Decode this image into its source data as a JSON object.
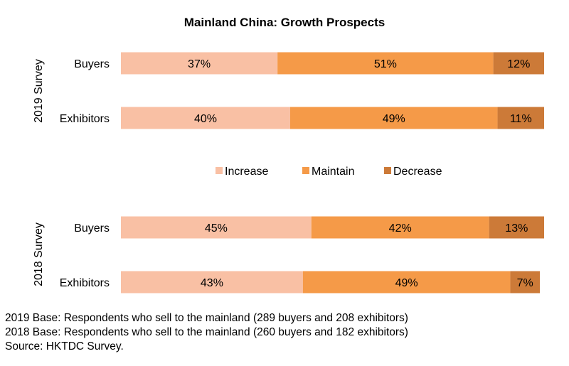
{
  "chart_data": {
    "type": "bar",
    "subtype": "stacked-horizontal-100",
    "title": "Mainland China: Growth Prospects",
    "groups": [
      {
        "label": "2019 Survey",
        "rows": [
          {
            "category": "Buyers",
            "values": [
              37,
              51,
              12
            ]
          },
          {
            "category": "Exhibitors",
            "values": [
              40,
              49,
              11
            ]
          }
        ]
      },
      {
        "label": "2018 Survey",
        "rows": [
          {
            "category": "Buyers",
            "values": [
              45,
              42,
              13
            ]
          },
          {
            "category": "Exhibitors",
            "values": [
              43,
              49,
              7
            ]
          }
        ]
      }
    ],
    "series": [
      {
        "name": "Increase",
        "color": "#f9c0a4"
      },
      {
        "name": "Maintain",
        "color": "#f59a48"
      },
      {
        "name": "Decrease",
        "color": "#cc7a38"
      }
    ],
    "value_suffix": "%",
    "legend_position": "center",
    "xlim": [
      0,
      100
    ],
    "grid": false
  },
  "notes": [
    "2019 Base: Respondents who sell to the mainland (289 buyers and 208 exhibitors)",
    "2018 Base: Respondents who sell to the mainland (260 buyers and 182 exhibitors)",
    "Source: HKTDC Survey."
  ]
}
